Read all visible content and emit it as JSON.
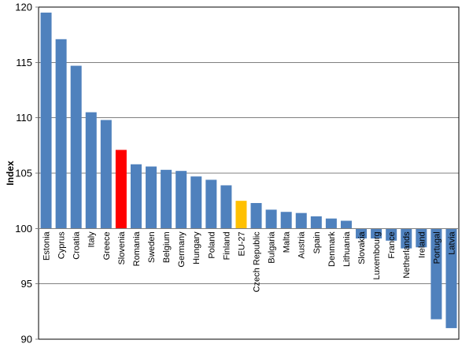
{
  "chart_data": {
    "type": "bar",
    "title": "",
    "xlabel": "",
    "ylabel": "Index",
    "ylim": [
      90,
      120
    ],
    "yticks": [
      90,
      95,
      100,
      105,
      110,
      115,
      120
    ],
    "baseline": 100,
    "grid": true,
    "legend": "none",
    "categories": [
      "Estonia",
      "Cyprus",
      "Croatia",
      "Italy",
      "Greece",
      "Slovenia",
      "Romania",
      "Sweden",
      "Belgium",
      "Germany",
      "Hungary",
      "Poland",
      "Finland",
      "EU-27",
      "Czech Republic",
      "Bulgaria",
      "Malta",
      "Austria",
      "Spain",
      "Denmark",
      "Lithuania",
      "Slovakia",
      "Luxembourg",
      "France",
      "Netherlands",
      "Ireland",
      "Portugal",
      "Latvia"
    ],
    "values": [
      119.5,
      117.1,
      114.7,
      110.5,
      109.8,
      107.1,
      105.8,
      105.6,
      105.3,
      105.2,
      104.7,
      104.4,
      103.9,
      102.5,
      102.3,
      101.7,
      101.5,
      101.4,
      101.1,
      100.9,
      100.7,
      99.1,
      99.1,
      98.9,
      98.2,
      98.3,
      91.8,
      91.0
    ],
    "colors": {
      "default": "#4f81bd",
      "highlight_slovenia": "#ff0000",
      "highlight_eu27": "#ffc000",
      "grid": "#808080",
      "axis": "#808080"
    },
    "highlights": {
      "Slovenia": "#ff0000",
      "EU-27": "#ffc000"
    }
  }
}
